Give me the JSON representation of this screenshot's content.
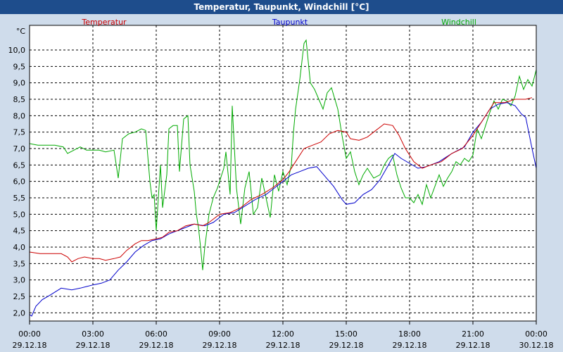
{
  "title": "Temperatur, Taupunkt, Windchill [°C]",
  "chart_data": {
    "type": "line",
    "unit": "°C",
    "ylim": [
      1.75,
      10.75
    ],
    "y_ticks": [
      2.0,
      2.5,
      3.0,
      3.5,
      4.0,
      4.5,
      5.0,
      5.5,
      6.0,
      6.5,
      7.0,
      7.5,
      8.0,
      8.5,
      9.0,
      9.5,
      10.0
    ],
    "y_tick_labels": [
      "2,0",
      "2,5",
      "3,0",
      "3,5",
      "4,0",
      "4,5",
      "5,0",
      "5,5",
      "6,0",
      "6,5",
      "7,0",
      "7,5",
      "8,0",
      "8,5",
      "9,0",
      "9,5",
      "10,0"
    ],
    "xlim": [
      0,
      24
    ],
    "x_ticks": [
      {
        "hour": 0,
        "time": "00:00",
        "date": "29.12.18"
      },
      {
        "hour": 3,
        "time": "03:00",
        "date": "29.12.18"
      },
      {
        "hour": 6,
        "time": "06:00",
        "date": "29.12.18"
      },
      {
        "hour": 9,
        "time": "09:00",
        "date": "29.12.18"
      },
      {
        "hour": 12,
        "time": "12:00",
        "date": "29.12.18"
      },
      {
        "hour": 15,
        "time": "15:00",
        "date": "29.12.18"
      },
      {
        "hour": 18,
        "time": "18:00",
        "date": "29.12.18"
      },
      {
        "hour": 21,
        "time": "21:00",
        "date": "29.12.18"
      },
      {
        "hour": 24,
        "time": "00:00",
        "date": "30.12.18"
      }
    ],
    "grid": true,
    "series": [
      {
        "name": "Temperatur",
        "color": "#cc0000",
        "points": [
          [
            0,
            3.85
          ],
          [
            0.5,
            3.8
          ],
          [
            1,
            3.8
          ],
          [
            1.5,
            3.8
          ],
          [
            1.8,
            3.7
          ],
          [
            2,
            3.55
          ],
          [
            2.3,
            3.65
          ],
          [
            2.6,
            3.7
          ],
          [
            3,
            3.65
          ],
          [
            3.3,
            3.65
          ],
          [
            3.6,
            3.6
          ],
          [
            4,
            3.65
          ],
          [
            4.3,
            3.7
          ],
          [
            4.6,
            3.9
          ],
          [
            5,
            4.1
          ],
          [
            5.3,
            4.2
          ],
          [
            5.6,
            4.2
          ],
          [
            6,
            4.25
          ],
          [
            6.3,
            4.3
          ],
          [
            6.6,
            4.45
          ],
          [
            7,
            4.5
          ],
          [
            7.4,
            4.65
          ],
          [
            7.8,
            4.7
          ],
          [
            8.2,
            4.65
          ],
          [
            8.5,
            4.75
          ],
          [
            9,
            5.0
          ],
          [
            9.5,
            5.05
          ],
          [
            10,
            5.2
          ],
          [
            10.5,
            5.45
          ],
          [
            11,
            5.6
          ],
          [
            11.5,
            5.8
          ],
          [
            12,
            6.05
          ],
          [
            12.3,
            6.3
          ],
          [
            12.6,
            6.6
          ],
          [
            13,
            7.0
          ],
          [
            13.4,
            7.1
          ],
          [
            13.8,
            7.2
          ],
          [
            14.2,
            7.45
          ],
          [
            14.6,
            7.55
          ],
          [
            15,
            7.5
          ],
          [
            15.2,
            7.3
          ],
          [
            15.6,
            7.25
          ],
          [
            16,
            7.35
          ],
          [
            16.4,
            7.55
          ],
          [
            16.8,
            7.75
          ],
          [
            17.2,
            7.7
          ],
          [
            17.5,
            7.4
          ],
          [
            17.8,
            7.0
          ],
          [
            18.2,
            6.6
          ],
          [
            18.6,
            6.4
          ],
          [
            19,
            6.5
          ],
          [
            19.5,
            6.6
          ],
          [
            20,
            6.85
          ],
          [
            20.5,
            7.0
          ],
          [
            21,
            7.4
          ],
          [
            21.5,
            7.9
          ],
          [
            22,
            8.4
          ],
          [
            22.5,
            8.4
          ],
          [
            23,
            8.5
          ],
          [
            23.5,
            8.5
          ],
          [
            23.8,
            8.55
          ]
        ]
      },
      {
        "name": "Taupunkt",
        "color": "#0000cc",
        "points": [
          [
            0,
            1.95
          ],
          [
            0.1,
            1.9
          ],
          [
            0.3,
            2.2
          ],
          [
            0.6,
            2.4
          ],
          [
            1,
            2.55
          ],
          [
            1.5,
            2.75
          ],
          [
            2,
            2.7
          ],
          [
            2.4,
            2.75
          ],
          [
            2.7,
            2.8
          ],
          [
            3,
            2.85
          ],
          [
            3.4,
            2.9
          ],
          [
            3.8,
            3.0
          ],
          [
            4.2,
            3.3
          ],
          [
            4.6,
            3.55
          ],
          [
            5,
            3.85
          ],
          [
            5.4,
            4.05
          ],
          [
            5.8,
            4.2
          ],
          [
            6.2,
            4.25
          ],
          [
            6.6,
            4.4
          ],
          [
            7,
            4.5
          ],
          [
            7.4,
            4.6
          ],
          [
            7.8,
            4.7
          ],
          [
            8.3,
            4.65
          ],
          [
            8.7,
            4.75
          ],
          [
            9.2,
            5.0
          ],
          [
            9.7,
            5.05
          ],
          [
            10.2,
            5.25
          ],
          [
            10.7,
            5.45
          ],
          [
            11.2,
            5.6
          ],
          [
            11.6,
            5.8
          ],
          [
            12,
            6.0
          ],
          [
            12.4,
            6.2
          ],
          [
            12.8,
            6.3
          ],
          [
            13.2,
            6.4
          ],
          [
            13.6,
            6.45
          ],
          [
            14,
            6.15
          ],
          [
            14.4,
            5.85
          ],
          [
            14.8,
            5.45
          ],
          [
            15,
            5.3
          ],
          [
            15.4,
            5.35
          ],
          [
            15.8,
            5.6
          ],
          [
            16.2,
            5.75
          ],
          [
            16.6,
            6.05
          ],
          [
            17,
            6.5
          ],
          [
            17.3,
            6.85
          ],
          [
            17.6,
            6.7
          ],
          [
            18,
            6.55
          ],
          [
            18.4,
            6.4
          ],
          [
            18.8,
            6.45
          ],
          [
            19.4,
            6.6
          ],
          [
            20,
            6.85
          ],
          [
            20.6,
            7.05
          ],
          [
            21,
            7.5
          ],
          [
            21.4,
            7.8
          ],
          [
            21.8,
            8.2
          ],
          [
            22.2,
            8.35
          ],
          [
            22.6,
            8.4
          ],
          [
            23,
            8.3
          ],
          [
            23.3,
            8.05
          ],
          [
            23.5,
            7.95
          ],
          [
            23.8,
            7.0
          ],
          [
            24,
            6.4
          ]
        ]
      },
      {
        "name": "Windchill",
        "color": "#00aa00",
        "points": [
          [
            0,
            7.15
          ],
          [
            0.4,
            7.1
          ],
          [
            0.8,
            7.1
          ],
          [
            1.2,
            7.1
          ],
          [
            1.6,
            7.05
          ],
          [
            1.8,
            6.85
          ],
          [
            2.1,
            6.95
          ],
          [
            2.4,
            7.05
          ],
          [
            2.7,
            6.95
          ],
          [
            3,
            6.95
          ],
          [
            3.3,
            6.95
          ],
          [
            3.6,
            6.9
          ],
          [
            4,
            6.95
          ],
          [
            4.2,
            6.1
          ],
          [
            4.4,
            7.3
          ],
          [
            4.7,
            7.45
          ],
          [
            5,
            7.5
          ],
          [
            5.3,
            7.6
          ],
          [
            5.5,
            7.55
          ],
          [
            5.7,
            6.0
          ],
          [
            5.8,
            5.5
          ],
          [
            5.9,
            5.6
          ],
          [
            6,
            4.5
          ],
          [
            6.1,
            5.5
          ],
          [
            6.2,
            6.5
          ],
          [
            6.3,
            5.2
          ],
          [
            6.5,
            6.2
          ],
          [
            6.6,
            7.6
          ],
          [
            6.8,
            7.7
          ],
          [
            7,
            7.7
          ],
          [
            7.1,
            6.3
          ],
          [
            7.3,
            7.9
          ],
          [
            7.5,
            8.0
          ],
          [
            7.6,
            6.5
          ],
          [
            7.8,
            5.7
          ],
          [
            7.9,
            5.0
          ],
          [
            8,
            4.6
          ],
          [
            8.1,
            4.0
          ],
          [
            8.2,
            3.3
          ],
          [
            8.3,
            4.0
          ],
          [
            8.5,
            5.0
          ],
          [
            8.7,
            5.5
          ],
          [
            8.9,
            5.8
          ],
          [
            9,
            6.0
          ],
          [
            9.2,
            6.4
          ],
          [
            9.3,
            6.9
          ],
          [
            9.5,
            5.6
          ],
          [
            9.6,
            8.3
          ],
          [
            9.8,
            5.8
          ],
          [
            10,
            4.7
          ],
          [
            10.2,
            5.8
          ],
          [
            10.4,
            6.3
          ],
          [
            10.6,
            5.0
          ],
          [
            10.8,
            5.2
          ],
          [
            11,
            6.1
          ],
          [
            11.2,
            5.5
          ],
          [
            11.4,
            4.9
          ],
          [
            11.6,
            6.2
          ],
          [
            11.8,
            5.7
          ],
          [
            12,
            6.3
          ],
          [
            12.2,
            5.9
          ],
          [
            12.4,
            6.5
          ],
          [
            12.5,
            7.5
          ],
          [
            12.6,
            8.2
          ],
          [
            12.8,
            9.1
          ],
          [
            13,
            10.2
          ],
          [
            13.1,
            10.3
          ],
          [
            13.3,
            9.0
          ],
          [
            13.5,
            8.8
          ],
          [
            13.7,
            8.5
          ],
          [
            13.9,
            8.2
          ],
          [
            14.1,
            8.7
          ],
          [
            14.3,
            8.85
          ],
          [
            14.6,
            8.2
          ],
          [
            14.8,
            7.4
          ],
          [
            15,
            6.7
          ],
          [
            15.2,
            6.9
          ],
          [
            15.4,
            6.3
          ],
          [
            15.6,
            5.9
          ],
          [
            15.8,
            6.2
          ],
          [
            16,
            6.4
          ],
          [
            16.3,
            6.1
          ],
          [
            16.6,
            6.2
          ],
          [
            16.8,
            6.5
          ],
          [
            17,
            6.7
          ],
          [
            17.2,
            6.8
          ],
          [
            17.4,
            6.2
          ],
          [
            17.6,
            5.8
          ],
          [
            17.8,
            5.5
          ],
          [
            18,
            5.5
          ],
          [
            18.2,
            5.35
          ],
          [
            18.4,
            5.6
          ],
          [
            18.6,
            5.3
          ],
          [
            18.8,
            5.9
          ],
          [
            19,
            5.5
          ],
          [
            19.2,
            5.85
          ],
          [
            19.4,
            6.2
          ],
          [
            19.6,
            5.85
          ],
          [
            19.8,
            6.1
          ],
          [
            20,
            6.3
          ],
          [
            20.2,
            6.6
          ],
          [
            20.4,
            6.5
          ],
          [
            20.6,
            6.7
          ],
          [
            20.8,
            6.6
          ],
          [
            21,
            6.8
          ],
          [
            21.2,
            7.6
          ],
          [
            21.4,
            7.3
          ],
          [
            21.6,
            7.7
          ],
          [
            21.8,
            8.1
          ],
          [
            22,
            8.45
          ],
          [
            22.2,
            8.2
          ],
          [
            22.4,
            8.5
          ],
          [
            22.6,
            8.45
          ],
          [
            22.8,
            8.3
          ],
          [
            23,
            8.6
          ],
          [
            23.2,
            9.2
          ],
          [
            23.4,
            8.8
          ],
          [
            23.6,
            9.1
          ],
          [
            23.8,
            8.9
          ],
          [
            24,
            9.4
          ]
        ]
      }
    ]
  }
}
